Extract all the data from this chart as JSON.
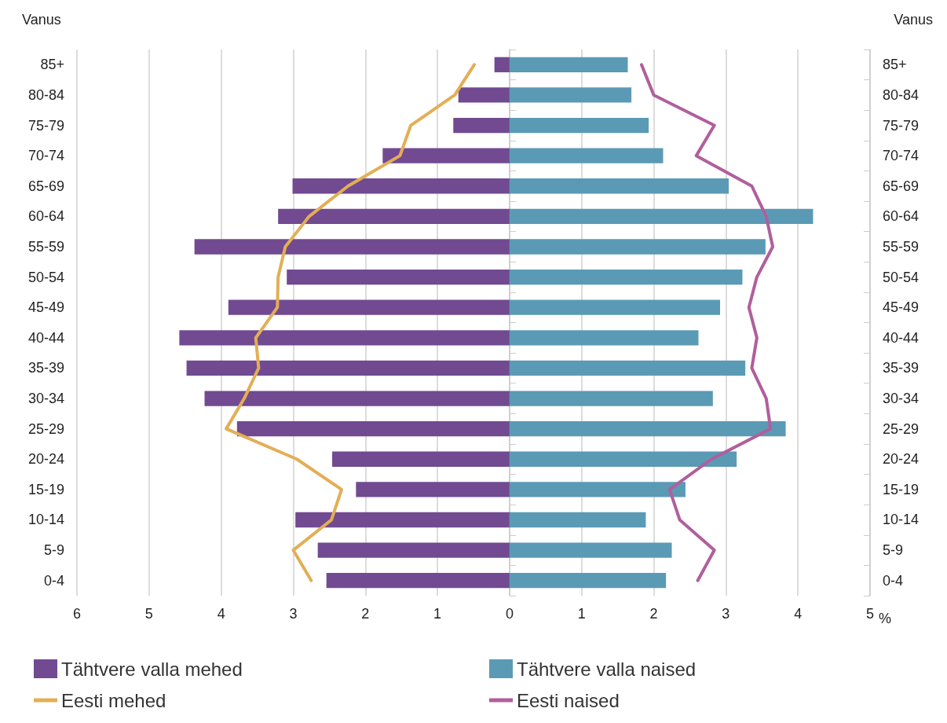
{
  "chart_data": {
    "type": "bar",
    "orientation": "horizontal",
    "xlabel": "%",
    "ylabel": "Vanus",
    "y2label": "Vanus",
    "categories": [
      "85+",
      "80-84",
      "75-79",
      "70-74",
      "65-69",
      "60-64",
      "55-59",
      "50-54",
      "45-49",
      "40-44",
      "35-39",
      "30-34",
      "25-29",
      "20-24",
      "15-19",
      "10-14",
      "5-9",
      "0-4"
    ],
    "series": [
      {
        "name": "Tähtvere valla mehed",
        "color": "#714a91",
        "values": [
          -0.21,
          -0.71,
          -0.78,
          -1.76,
          -3.01,
          -3.21,
          -4.37,
          -3.09,
          -3.9,
          -4.58,
          -4.48,
          -4.23,
          -3.78,
          -2.46,
          -2.13,
          -2.97,
          -2.66,
          -2.54
        ]
      },
      {
        "name": "Tähtvere valla naised",
        "color": "#5b9ab5",
        "values": [
          1.64,
          1.69,
          1.93,
          2.13,
          3.04,
          4.21,
          3.55,
          3.23,
          2.92,
          2.62,
          3.27,
          2.82,
          3.83,
          3.15,
          2.44,
          1.89,
          2.25,
          2.17
        ]
      },
      {
        "name": "Eesti mehed",
        "type": "line",
        "color": "#e3ae55",
        "values": [
          -0.49,
          -0.76,
          -1.37,
          -1.52,
          -2.24,
          -2.78,
          -3.11,
          -3.21,
          -3.22,
          -3.52,
          -3.48,
          -3.68,
          -3.93,
          -2.95,
          -2.33,
          -2.47,
          -3.0,
          -2.75
        ]
      },
      {
        "name": "Eesti naised",
        "type": "line",
        "color": "#b05f9c",
        "values": [
          1.83,
          2.0,
          2.84,
          2.59,
          3.36,
          3.56,
          3.65,
          3.43,
          3.32,
          3.43,
          3.36,
          3.56,
          3.62,
          2.8,
          2.22,
          2.36,
          2.84,
          2.61
        ]
      }
    ],
    "xlim": [
      -6,
      5
    ],
    "xticks": [
      {
        "value": -6,
        "label": "6"
      },
      {
        "value": -5,
        "label": "5"
      },
      {
        "value": -4,
        "label": "4"
      },
      {
        "value": -3,
        "label": "3"
      },
      {
        "value": -2,
        "label": "2"
      },
      {
        "value": -1,
        "label": "1"
      },
      0,
      1,
      2,
      3,
      4,
      5
    ],
    "grid": "x",
    "stacked": true,
    "legend": "bottom",
    "marker": "none",
    "line_style": "solid"
  }
}
